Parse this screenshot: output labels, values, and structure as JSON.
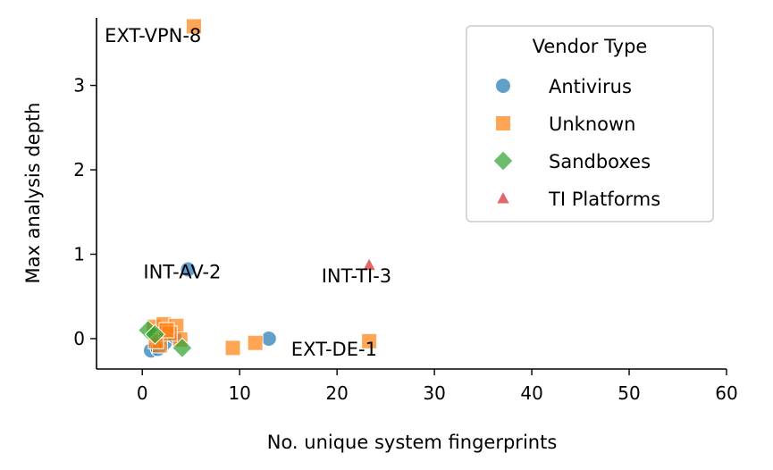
{
  "chart_data": {
    "type": "scatter",
    "xlabel": "No. unique system fingerprints",
    "ylabel": "Max analysis depth",
    "xlim": [
      -4.7,
      60
    ],
    "ylim": [
      -0.36,
      3.8
    ],
    "xticks": [
      0,
      10,
      20,
      30,
      40,
      50,
      60
    ],
    "yticks": [
      0,
      1,
      2,
      3
    ],
    "grid": false,
    "legend": {
      "title": "Vendor Type",
      "placement": "top-right",
      "entries": [
        {
          "name": "Antivirus",
          "marker": "circle",
          "color": "#1f77b4"
        },
        {
          "name": "Unknown",
          "marker": "square",
          "color": "#ff7f0e"
        },
        {
          "name": "Sandboxes",
          "marker": "diamond",
          "color": "#2ca02c"
        },
        {
          "name": "TI Platforms",
          "marker": "triangle",
          "color": "#d62728"
        }
      ]
    },
    "series": [
      {
        "name": "Antivirus",
        "marker": "circle",
        "color": "#1f77b4",
        "points": [
          [
            4.7,
            0.82
          ],
          [
            13.0,
            0.0
          ],
          [
            0.9,
            -0.14
          ],
          [
            2.3,
            -0.05
          ],
          [
            1.6,
            -0.12
          ],
          [
            3.3,
            0.03
          ]
        ]
      },
      {
        "name": "Unknown",
        "marker": "square",
        "color": "#ff7f0e",
        "points": [
          [
            5.3,
            3.7
          ],
          [
            23.3,
            -0.03
          ],
          [
            9.3,
            -0.11
          ],
          [
            11.6,
            -0.05
          ],
          [
            1.2,
            0.14
          ],
          [
            2.2,
            0.17
          ],
          [
            3.5,
            0.15
          ],
          [
            1.8,
            -0.08
          ],
          [
            3.9,
            -0.01
          ],
          [
            2.8,
            0.06
          ],
          [
            1.4,
            -0.03
          ],
          [
            2.5,
            0.1
          ]
        ]
      },
      {
        "name": "Sandboxes",
        "marker": "diamond",
        "color": "#2ca02c",
        "points": [
          [
            0.6,
            0.1
          ],
          [
            4.1,
            -0.11
          ],
          [
            1.3,
            0.05
          ]
        ]
      },
      {
        "name": "TI Platforms",
        "marker": "triangle",
        "color": "#d62728",
        "points": [
          [
            23.3,
            0.87
          ]
        ]
      }
    ],
    "annotations": [
      {
        "id": "ext-vpn-8",
        "text": "EXT-VPN-8",
        "x": 1.1,
        "y": 3.58
      },
      {
        "id": "int-av-2",
        "text": "INT-AV-2",
        "x": 4.1,
        "y": 0.78
      },
      {
        "id": "int-ti-3",
        "text": "INT-TI-3",
        "x": 22.0,
        "y": 0.73
      },
      {
        "id": "ext-de-1",
        "text": "EXT-DE-1",
        "x": 19.7,
        "y": -0.14
      }
    ]
  }
}
